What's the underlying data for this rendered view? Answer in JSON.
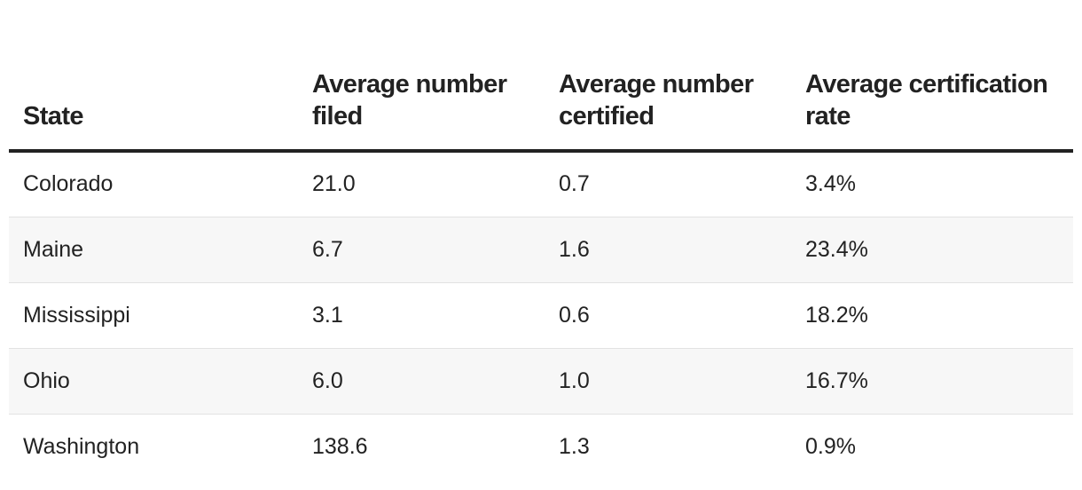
{
  "chart_data": {
    "type": "table",
    "columns": [
      "State",
      "Average number filed",
      "Average number certified",
      "Average certification rate"
    ],
    "rows": [
      [
        "Colorado",
        "21.0",
        "0.7",
        "3.4%"
      ],
      [
        "Maine",
        "6.7",
        "1.6",
        "23.4%"
      ],
      [
        "Mississippi",
        "3.1",
        "0.6",
        "18.2%"
      ],
      [
        "Ohio",
        "6.0",
        "1.0",
        "16.7%"
      ],
      [
        "Washington",
        "138.6",
        "1.3",
        "0.9%"
      ]
    ]
  },
  "colors": {
    "text": "#222222",
    "header_rule": "#222222",
    "row_divider": "#e2e2e2",
    "alt_row_background": "#f7f7f7"
  }
}
